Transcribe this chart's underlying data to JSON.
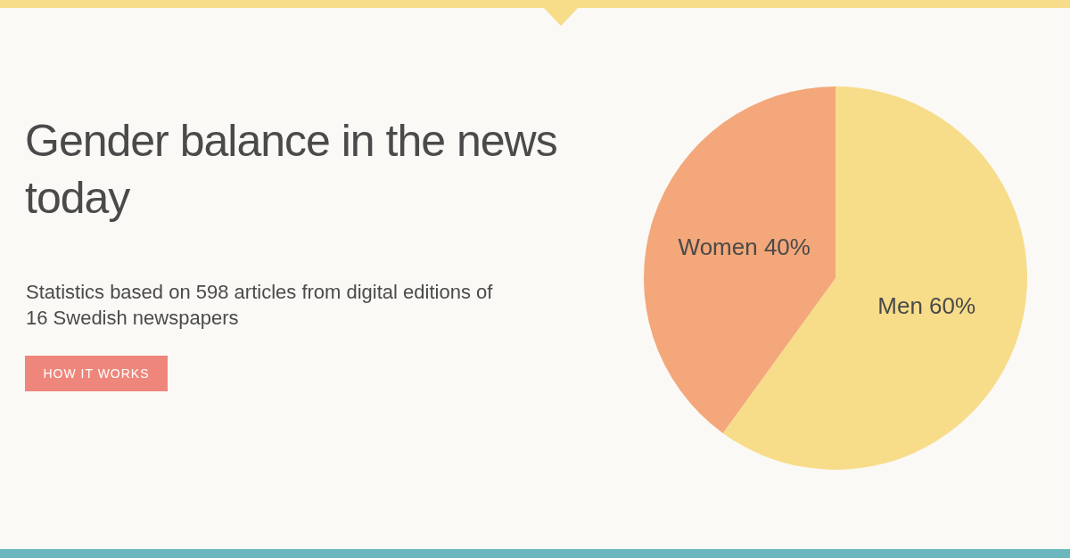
{
  "chart_data": {
    "type": "pie",
    "title": "Gender balance in the news today",
    "subtitle": "Statistics based on 598 articles from digital editions of 16 Swedish newspapers",
    "annotations": [
      "HOW IT WORKS"
    ],
    "categories": [
      "Men",
      "Women"
    ],
    "values": [
      60,
      40
    ],
    "colors": [
      "#f7dc8a",
      "#f3a77a"
    ],
    "value_labels": [
      "60%",
      "40%"
    ],
    "legend": false
  }
}
